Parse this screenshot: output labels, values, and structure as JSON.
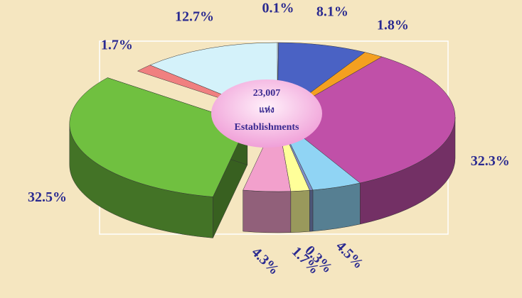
{
  "chart_data": {
    "type": "pie",
    "values": [
      0.1,
      8.1,
      1.8,
      32.3,
      4.5,
      0.3,
      1.7,
      4.3,
      32.5,
      1.7,
      12.7
    ],
    "value_labels": [
      "0.1%",
      "8.1%",
      "1.8%",
      "32.3%",
      "4.5%",
      "0.3%",
      "1.7%",
      "4.3%",
      "32.5%",
      "1.7%",
      "12.7%"
    ],
    "colors": [
      "#e0e8ff",
      "#4a62c4",
      "#f4a020",
      "#c050a8",
      "#90d4f4",
      "#7f8fc8",
      "#ffff99",
      "#f2a0cc",
      "#70c040",
      "#f08080",
      "#d4f2fa"
    ],
    "explode": [
      false,
      false,
      false,
      false,
      false,
      false,
      false,
      false,
      true,
      false,
      false
    ],
    "annotations": [
      "23,007",
      "แห่ง",
      "Establishments"
    ]
  }
}
